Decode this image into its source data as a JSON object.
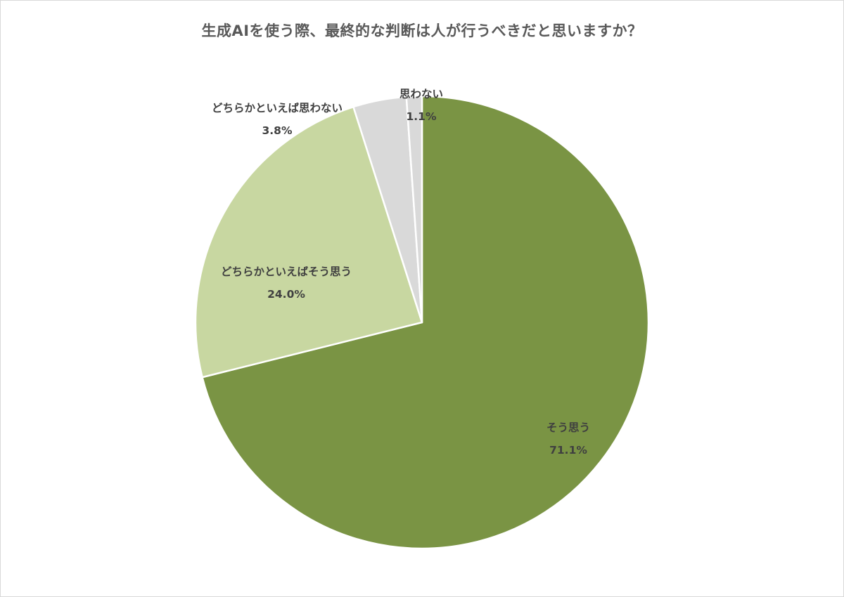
{
  "chart_data": {
    "type": "pie",
    "title": "生成AIを使う際、最終的な判断は人が行うべきだと思いますか？",
    "start": "top",
    "direction": "clockwise",
    "slices": [
      {
        "label": "そう思う",
        "value": 71.1,
        "value_label": "71.1%",
        "color": "#7a9444"
      },
      {
        "label": "どちらかといえばそう思う",
        "value": 24.0,
        "value_label": "24.0%",
        "color": "#c8d7a1"
      },
      {
        "label": "どちらかといえば思わない",
        "value": 3.8,
        "value_label": "3.8%",
        "color": "#d9d9d9"
      },
      {
        "label": "思わない",
        "value": 1.1,
        "value_label": "1.1%",
        "color": "#d9d9d9"
      }
    ]
  }
}
